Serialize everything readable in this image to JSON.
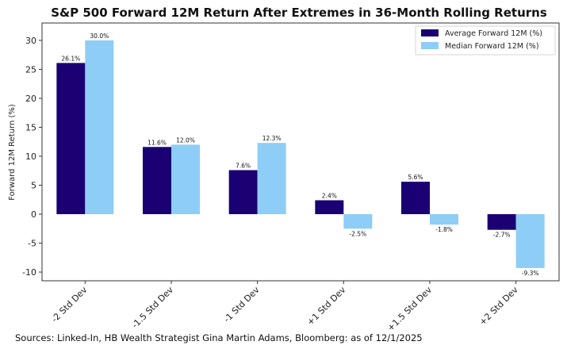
{
  "chart_data": {
    "type": "bar",
    "title": "S&P 500 Forward 12M Return After Extremes in 36-Month Rolling Returns",
    "ylabel": "Forward 12M Return (%)",
    "xlabel": "",
    "categories": [
      "-2 Std Dev",
      "-1.5 Std Dev",
      "-1 Std Dev",
      "+1 Std Dev",
      "+1.5 Std Dev",
      "+2 Std Dev"
    ],
    "series": [
      {
        "name": "Average Forward 12M (%)",
        "color": "#1a0073",
        "values": [
          26.1,
          11.6,
          7.6,
          2.4,
          5.6,
          -2.7
        ],
        "labels": [
          "26.1%",
          "11.6%",
          "7.6%",
          "2.4%",
          "5.6%",
          "-2.7%"
        ]
      },
      {
        "name": "Median Forward 12M (%)",
        "color": "#8ecdf5",
        "values": [
          30.0,
          12.0,
          12.3,
          -2.5,
          -1.8,
          -9.3
        ],
        "labels": [
          "30.0%",
          "12.0%",
          "12.3%",
          "-2.5%",
          "-1.8%",
          "-9.3%"
        ]
      }
    ],
    "ylim": [
      -11.5,
      33
    ],
    "yticks": [
      -10,
      -5,
      0,
      5,
      10,
      15,
      20,
      25,
      30
    ],
    "legend": "top-right",
    "grid": false
  },
  "source": "Sources: Linked-In, HB Wealth Strategist Gina Martin Adams, Bloomberg: as of 12/1/2025"
}
